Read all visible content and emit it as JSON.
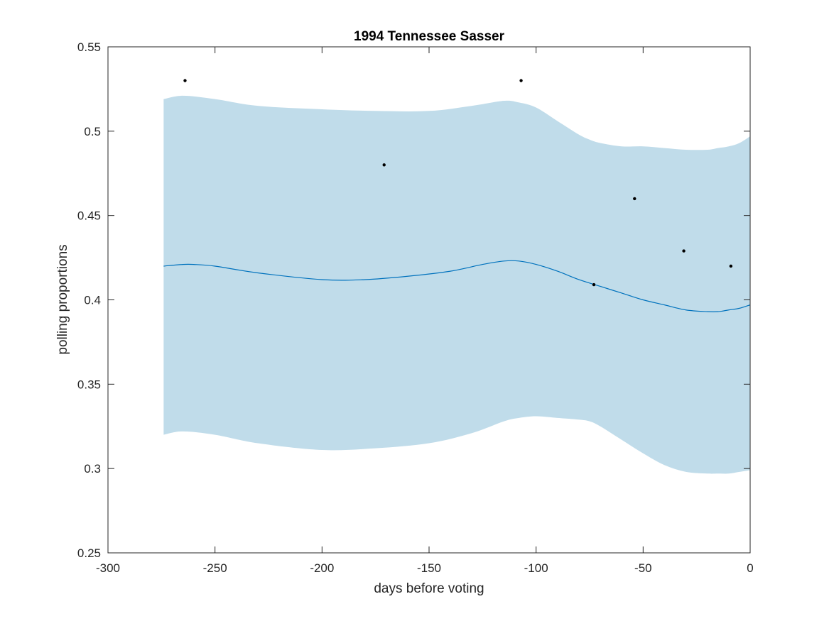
{
  "chart_data": {
    "type": "line",
    "title": "1994 Tennessee Sasser",
    "xlabel": "days before voting",
    "ylabel": "polling proportions",
    "xlim": [
      -300,
      0
    ],
    "ylim": [
      0.25,
      0.55
    ],
    "xticks": [
      -300,
      -250,
      -200,
      -150,
      -100,
      -50,
      0
    ],
    "xtick_labels": [
      "-300",
      "-250",
      "-200",
      "-150",
      "-100",
      "-50",
      "0"
    ],
    "yticks": [
      0.25,
      0.3,
      0.35,
      0.4,
      0.45,
      0.5,
      0.55
    ],
    "ytick_labels": [
      "0.25",
      "0.3",
      "0.35",
      "0.4",
      "0.45",
      "0.5",
      "0.55"
    ],
    "grid": false,
    "colors": {
      "band": "#c0dcea",
      "line": "#0072bd",
      "points": "#000000",
      "axes": "#262626"
    },
    "series": [
      {
        "type": "area-band",
        "x": [
          -274,
          -265,
          -250,
          -230,
          -200,
          -175,
          -150,
          -130,
          -115,
          -108,
          -100,
          -90,
          -80,
          -75,
          -70,
          -60,
          -50,
          -40,
          -30,
          -20,
          -15,
          -10,
          -5,
          0
        ],
        "upper": [
          0.519,
          0.521,
          0.519,
          0.515,
          0.513,
          0.512,
          0.512,
          0.515,
          0.518,
          0.517,
          0.514,
          0.506,
          0.498,
          0.495,
          0.493,
          0.491,
          0.491,
          0.49,
          0.489,
          0.489,
          0.49,
          0.491,
          0.493,
          0.497
        ],
        "lower": [
          0.32,
          0.322,
          0.32,
          0.315,
          0.311,
          0.312,
          0.315,
          0.321,
          0.328,
          0.33,
          0.331,
          0.33,
          0.329,
          0.328,
          0.325,
          0.317,
          0.309,
          0.302,
          0.298,
          0.297,
          0.297,
          0.297,
          0.298,
          0.299
        ]
      },
      {
        "type": "line",
        "x": [
          -274,
          -265,
          -260,
          -250,
          -230,
          -200,
          -180,
          -160,
          -140,
          -125,
          -115,
          -108,
          -100,
          -90,
          -80,
          -70,
          -60,
          -50,
          -40,
          -30,
          -20,
          -15,
          -10,
          -5,
          0
        ],
        "values": [
          0.42,
          0.421,
          0.421,
          0.42,
          0.416,
          0.412,
          0.412,
          0.414,
          0.417,
          0.421,
          0.423,
          0.423,
          0.421,
          0.417,
          0.412,
          0.408,
          0.404,
          0.4,
          0.397,
          0.394,
          0.393,
          0.393,
          0.394,
          0.395,
          0.397
        ]
      },
      {
        "type": "scatter",
        "x": [
          -264,
          -171,
          -107,
          -73,
          -54,
          -31,
          -9
        ],
        "values": [
          0.53,
          0.48,
          0.53,
          0.409,
          0.46,
          0.429,
          0.42
        ]
      }
    ]
  }
}
